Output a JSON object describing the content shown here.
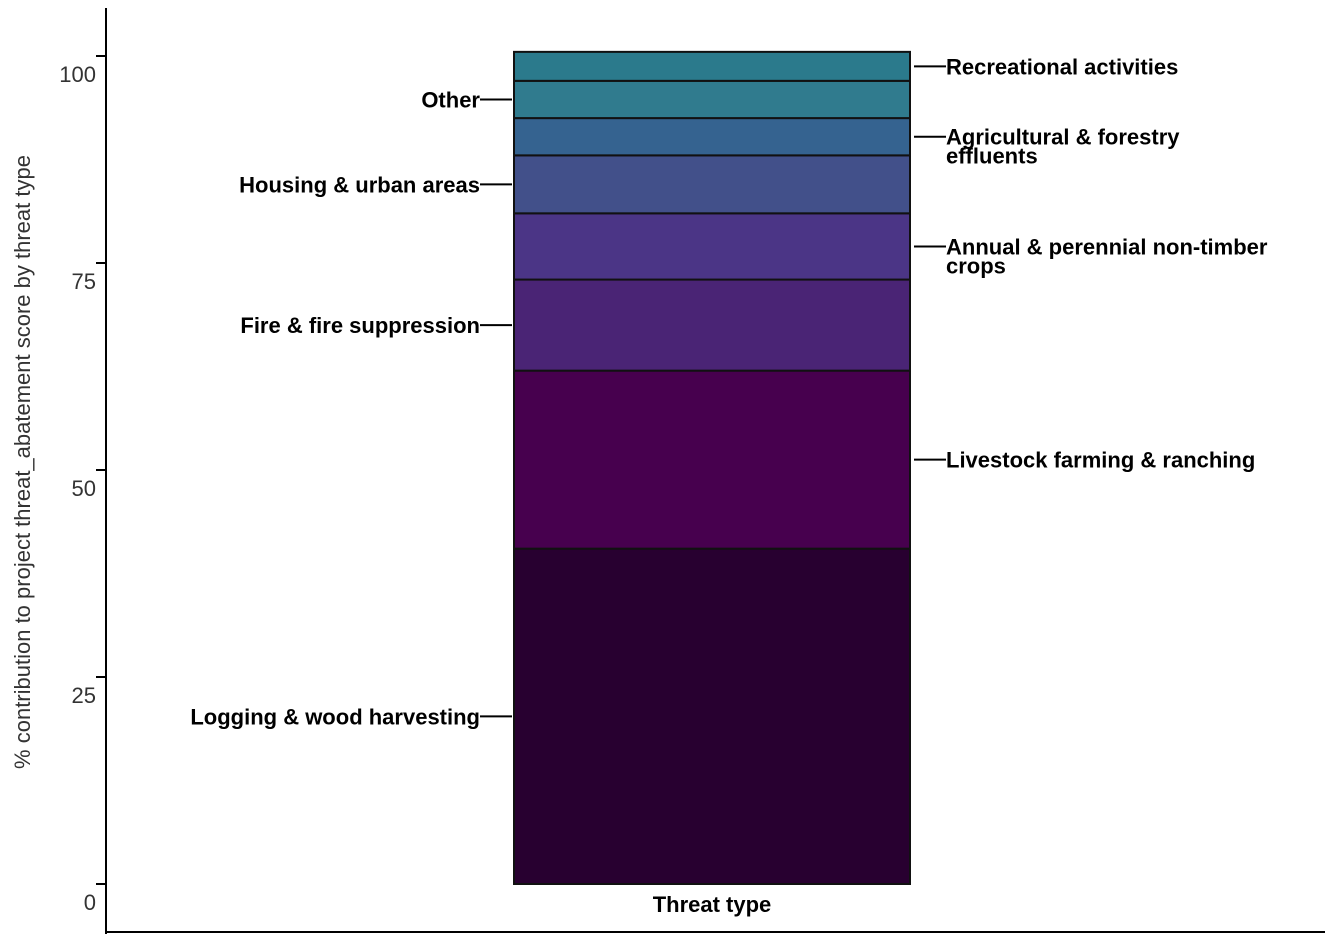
{
  "chart_data": {
    "type": "bar",
    "stacked": true,
    "ylabel": "% contribution to project threat_abatement score by threat type",
    "ylim": [
      0,
      100
    ],
    "yticks": [
      "0",
      "25",
      "50",
      "75",
      "100"
    ],
    "categories": [
      "Threat type"
    ],
    "series": [
      {
        "name": "Logging & wood harvesting",
        "value": 40.5,
        "color": "#280030",
        "label_side": "left"
      },
      {
        "name": "Livestock farming & ranching",
        "value": 21.5,
        "color": "#47004e",
        "label_side": "right"
      },
      {
        "name": "Fire & fire suppression",
        "value": 11.0,
        "color": "#4a2475",
        "label_side": "left"
      },
      {
        "name": "Annual & perennial non-timber crops",
        "value": 8.0,
        "color": "#4b3586",
        "label_side": "right"
      },
      {
        "name": "Housing & urban areas",
        "value": 7.0,
        "color": "#42508a",
        "label_side": "left"
      },
      {
        "name": "Agricultural & forestry effluents",
        "value": 4.5,
        "color": "#356390",
        "label_side": "right"
      },
      {
        "name": "Other",
        "value": 4.5,
        "color": "#307b8e",
        "label_side": "left"
      },
      {
        "name": "Recreational activities",
        "value": 3.5,
        "color": "#2b7a8c",
        "label_side": "right"
      }
    ],
    "grid": false,
    "legend": "direct labels"
  }
}
